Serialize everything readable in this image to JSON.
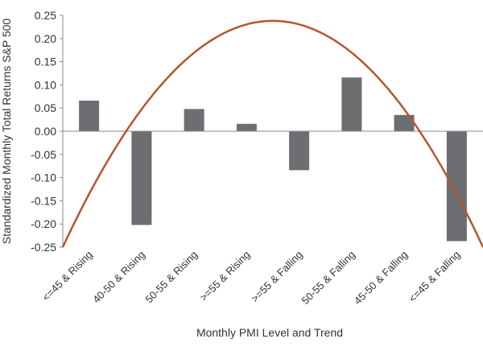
{
  "chart_data": {
    "type": "bar",
    "xlabel": "Monthly PMI Level and Trend",
    "ylabel": "Standardized Monthly Total Returns S&P 500",
    "ylim": [
      -0.25,
      0.25
    ],
    "yticks": [
      "0.25",
      "0.20",
      "0.15",
      "0.10",
      "0.05",
      "0.00",
      "-0.05",
      "-0.10",
      "-0.15",
      "-0.20",
      "-0.25"
    ],
    "ytick_values": [
      0.25,
      0.2,
      0.15,
      0.1,
      0.05,
      0.0,
      -0.05,
      -0.1,
      -0.15,
      -0.2,
      -0.25
    ],
    "categories": [
      "<=45 & Rising",
      "40-50 & Rising",
      "50-55 & Rising",
      ">=55 & Rising",
      ">=55 & Falling",
      "50-55 & Falling",
      "45-50 & Falling",
      "<=45 & Falling"
    ],
    "values": [
      0.066,
      -0.202,
      0.048,
      0.016,
      -0.084,
      0.116,
      0.035,
      -0.237
    ],
    "curve": {
      "type": "parabola",
      "x_position": [
        0.0,
        8.0
      ],
      "x_vertex": 4.0,
      "peak": 0.238,
      "ends": -0.25
    },
    "grid": false,
    "legend": "none",
    "colors": {
      "bar": "#6d6e71",
      "curve": "#b5562f",
      "axis": "#888888"
    }
  }
}
